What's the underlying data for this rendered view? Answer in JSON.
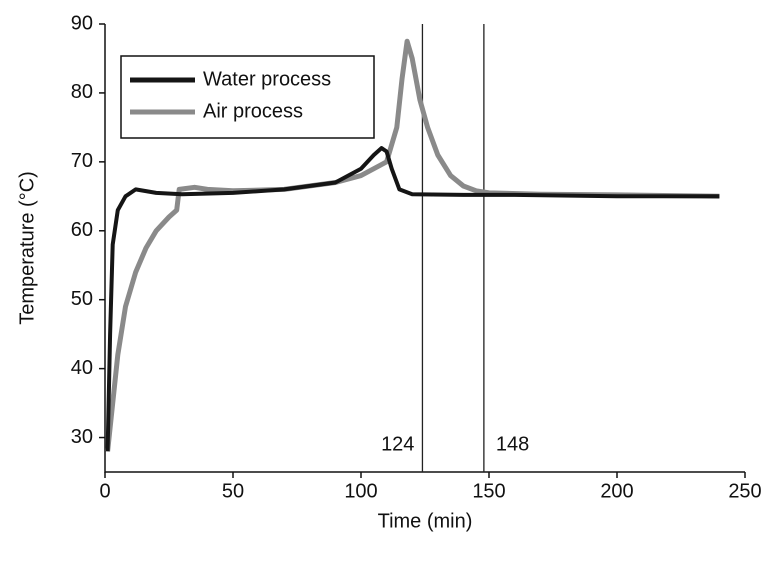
{
  "chart_data": {
    "type": "line",
    "x_label": "Time (min)",
    "y_label": "Temperature (°C)",
    "xlim": [
      0,
      250
    ],
    "xticks": [
      0,
      50,
      100,
      150,
      200,
      250
    ],
    "ylim": [
      25,
      90
    ],
    "yticks": [
      30,
      40,
      50,
      60,
      70,
      80,
      90
    ],
    "vlines": [
      124,
      148
    ],
    "legend": "upper left",
    "series": [
      {
        "name": "Water process",
        "color": "#151515",
        "x": [
          1,
          2,
          3,
          5,
          8,
          12,
          20,
          30,
          50,
          70,
          90,
          100,
          105,
          108,
          110,
          112,
          115,
          120,
          140,
          160,
          200,
          240
        ],
        "values": [
          28,
          45,
          58,
          63,
          65,
          66,
          65.5,
          65.3,
          65.5,
          66,
          67,
          69,
          71,
          72,
          71.5,
          69,
          66,
          65.3,
          65.2,
          65.2,
          65,
          65
        ]
      },
      {
        "name": "Air process",
        "color": "#8a8a8a",
        "x": [
          1,
          3,
          5,
          8,
          12,
          16,
          20,
          25,
          28,
          29,
          35,
          40,
          50,
          70,
          90,
          100,
          110,
          114,
          116,
          118,
          120,
          123,
          126,
          130,
          135,
          140,
          145,
          150,
          170,
          200,
          240
        ],
        "values": [
          28,
          35,
          42,
          49,
          54,
          57.5,
          60,
          62,
          63,
          66,
          66.3,
          66,
          65.8,
          66,
          67,
          68,
          70,
          75,
          82,
          87.5,
          85,
          79,
          75,
          71,
          68,
          66.5,
          65.8,
          65.5,
          65.3,
          65.2,
          65
        ]
      }
    ]
  }
}
